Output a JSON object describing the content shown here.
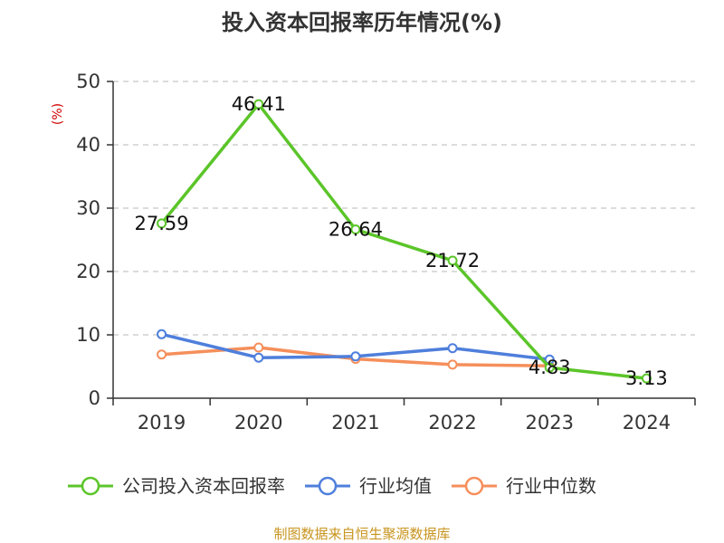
{
  "chart_data": {
    "type": "line",
    "title": "投入资本回报率历年情况(%)",
    "ylabel": "(%)",
    "xlabel": "",
    "categories": [
      "2019",
      "2020",
      "2021",
      "2022",
      "2023",
      "2024"
    ],
    "ylim": [
      0,
      50
    ],
    "yticks": [
      0,
      10,
      20,
      30,
      40,
      50
    ],
    "grid": true,
    "legend_position": "bottom",
    "series": [
      {
        "name": "公司投入资本回报率",
        "color": "#5bc529",
        "values": [
          27.59,
          46.41,
          26.64,
          21.72,
          4.83,
          3.13
        ],
        "labels": [
          "27.59",
          "46.41",
          "26.64",
          "21.72",
          "4.83",
          "3.13"
        ]
      },
      {
        "name": "行业均值",
        "color": "#4f7fdc",
        "values": [
          10.1,
          6.4,
          6.6,
          7.9,
          6.1,
          null
        ],
        "labels": []
      },
      {
        "name": "行业中位数",
        "color": "#f58f5b",
        "values": [
          6.9,
          8.0,
          6.2,
          5.3,
          5.1,
          null
        ],
        "labels": []
      }
    ],
    "source": "制图数据来自恒生聚源数据库"
  }
}
